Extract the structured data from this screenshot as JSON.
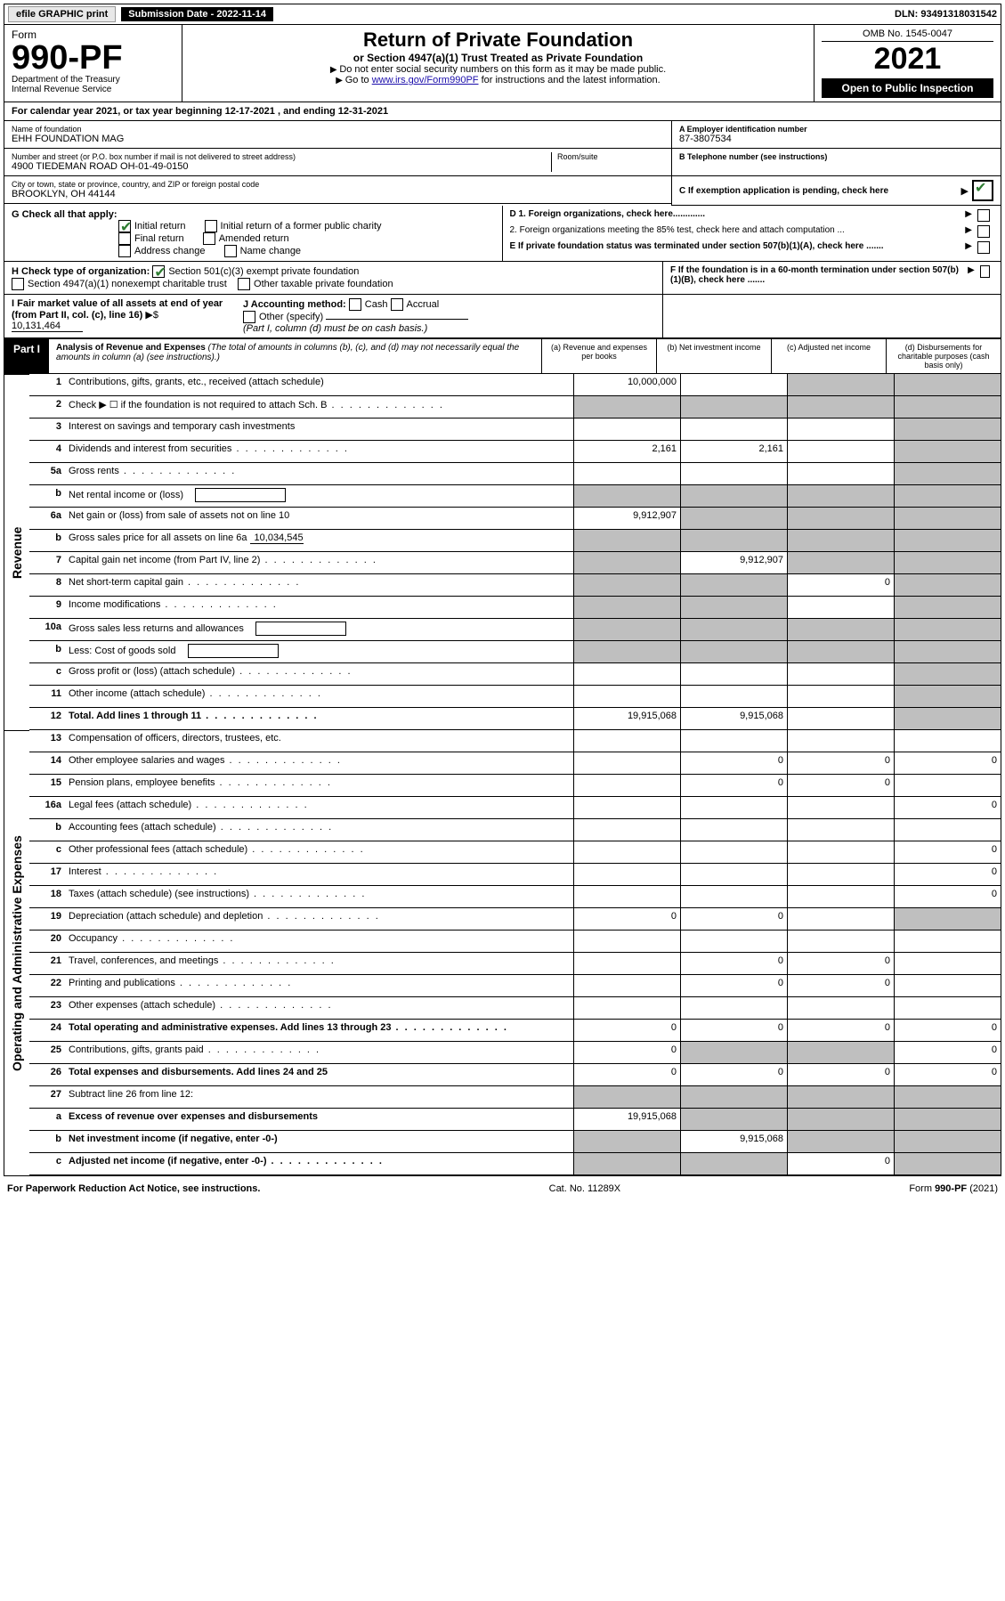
{
  "topbar": {
    "efile": "efile GRAPHIC print",
    "subdate_lbl": "Submission Date - 2022-11-14",
    "dln": "DLN: 93491318031542"
  },
  "header": {
    "form": "Form",
    "num": "990-PF",
    "dept": "Department of the Treasury",
    "irs": "Internal Revenue Service",
    "title": "Return of Private Foundation",
    "sub": "or Section 4947(a)(1) Trust Treated as Private Foundation",
    "instr1": "Do not enter social security numbers on this form as it may be made public.",
    "instr2_pre": "Go to ",
    "instr2_link": "www.irs.gov/Form990PF",
    "instr2_post": " for instructions and the latest information.",
    "omb": "OMB No. 1545-0047",
    "year": "2021",
    "inspect": "Open to Public Inspection"
  },
  "calyr": "For calendar year 2021, or tax year beginning 12-17-2021                             , and ending 12-31-2021",
  "id": {
    "name_lbl": "Name of foundation",
    "name": "EHH FOUNDATION MAG",
    "addr_lbl": "Number and street (or P.O. box number if mail is not delivered to street address)",
    "addr": "4900 TIEDEMAN ROAD OH-01-49-0150",
    "room_lbl": "Room/suite",
    "city_lbl": "City or town, state or province, country, and ZIP or foreign postal code",
    "city": "BROOKLYN, OH  44144",
    "a_lbl": "A Employer identification number",
    "a": "87-3807534",
    "b_lbl": "B Telephone number (see instructions)",
    "b": "",
    "c_lbl": "C If exemption application is pending, check here"
  },
  "g": {
    "lbl": "G Check all that apply:",
    "opts": [
      "Initial return",
      "Initial return of a former public charity",
      "Final return",
      "Amended return",
      "Address change",
      "Name change"
    ],
    "checked": [
      true,
      false,
      false,
      false,
      false,
      false
    ]
  },
  "d": {
    "d1": "D 1. Foreign organizations, check here.............",
    "d2": "2. Foreign organizations meeting the 85% test, check here and attach computation ...",
    "e": "E  If private foundation status was terminated under section 507(b)(1)(A), check here .......",
    "f": "F  If the foundation is in a 60-month termination under section 507(b)(1)(B), check here ......."
  },
  "h": {
    "lbl": "H Check type of organization:",
    "o1": "Section 501(c)(3) exempt private foundation",
    "o2": "Section 4947(a)(1) nonexempt charitable trust",
    "o3": "Other taxable private foundation"
  },
  "i": {
    "lbl": "I Fair market value of all assets at end of year (from Part II, col. (c), line 16)",
    "val": "10,131,464"
  },
  "j": {
    "lbl": "J Accounting method:",
    "cash": "Cash",
    "accrual": "Accrual",
    "other": "Other (specify)",
    "note": "(Part I, column (d) must be on cash basis.)"
  },
  "part1": {
    "lbl": "Part I",
    "title": "Analysis of Revenue and Expenses",
    "note": "(The total of amounts in columns (b), (c), and (d) may not necessarily equal the amounts in column (a) (see instructions).)",
    "cols": {
      "a": "(a)   Revenue and expenses per books",
      "b": "(b)   Net investment income",
      "c": "(c)  Adjusted net income",
      "d": "(d)  Disbursements for charitable purposes (cash basis only)"
    }
  },
  "sides": {
    "rev": "Revenue",
    "exp": "Operating and Administrative Expenses"
  },
  "rows": [
    {
      "n": "1",
      "d": "Contributions, gifts, grants, etc., received (attach schedule)",
      "a": "10,000,000",
      "bg": false,
      "cg": true,
      "dg": true
    },
    {
      "n": "2",
      "d": "Check ▶ ☐ if the foundation is not required to attach Sch. B",
      "a": "",
      "ag": true,
      "bg": true,
      "cg": true,
      "dg": true,
      "dots": true
    },
    {
      "n": "3",
      "d": "Interest on savings and temporary cash investments",
      "a": "",
      "dg": true
    },
    {
      "n": "4",
      "d": "Dividends and interest from securities",
      "a": "2,161",
      "b": "2,161",
      "dg": true,
      "dots": true
    },
    {
      "n": "5a",
      "d": "Gross rents",
      "a": "",
      "dg": true,
      "dots": true
    },
    {
      "n": "b",
      "d": "Net rental income or (loss)",
      "a": "",
      "ag": true,
      "bg": true,
      "cg": true,
      "dg": true,
      "box": true
    },
    {
      "n": "6a",
      "d": "Net gain or (loss) from sale of assets not on line 10",
      "a": "9,912,907",
      "bg": true,
      "cg": true,
      "dg": true
    },
    {
      "n": "b",
      "d": "Gross sales price for all assets on line 6a",
      "a": "",
      "ag": true,
      "bg": true,
      "cg": true,
      "dg": true,
      "fill": "10,034,545"
    },
    {
      "n": "7",
      "d": "Capital gain net income (from Part IV, line 2)",
      "a": "",
      "ag": true,
      "b": "9,912,907",
      "cg": true,
      "dg": true,
      "dots": true
    },
    {
      "n": "8",
      "d": "Net short-term capital gain",
      "a": "",
      "ag": true,
      "bg": true,
      "c": "0",
      "dg": true,
      "dots": true
    },
    {
      "n": "9",
      "d": "Income modifications",
      "a": "",
      "ag": true,
      "bg": true,
      "dg": true,
      "dots": true
    },
    {
      "n": "10a",
      "d": "Gross sales less returns and allowances",
      "a": "",
      "ag": true,
      "bg": true,
      "cg": true,
      "dg": true,
      "box": true
    },
    {
      "n": "b",
      "d": "Less: Cost of goods sold",
      "a": "",
      "ag": true,
      "bg": true,
      "cg": true,
      "dg": true,
      "box": true,
      "dots": true
    },
    {
      "n": "c",
      "d": "Gross profit or (loss) (attach schedule)",
      "a": "",
      "dg": true,
      "dots": true
    },
    {
      "n": "11",
      "d": "Other income (attach schedule)",
      "a": "",
      "dg": true,
      "dots": true
    },
    {
      "n": "12",
      "d": "Total. Add lines 1 through 11",
      "a": "19,915,068",
      "b": "9,915,068",
      "dg": true,
      "dots": true,
      "bold": true
    }
  ],
  "exp_rows": [
    {
      "n": "13",
      "d": "Compensation of officers, directors, trustees, etc."
    },
    {
      "n": "14",
      "d": "Other employee salaries and wages",
      "b": "0",
      "c": "0",
      "dv": "0",
      "dots": true
    },
    {
      "n": "15",
      "d": "Pension plans, employee benefits",
      "b": "0",
      "c": "0",
      "dots": true
    },
    {
      "n": "16a",
      "d": "Legal fees (attach schedule)",
      "dv": "0",
      "dots": true
    },
    {
      "n": "b",
      "d": "Accounting fees (attach schedule)",
      "dots": true
    },
    {
      "n": "c",
      "d": "Other professional fees (attach schedule)",
      "dv": "0",
      "dots": true
    },
    {
      "n": "17",
      "d": "Interest",
      "dv": "0",
      "dots": true
    },
    {
      "n": "18",
      "d": "Taxes (attach schedule) (see instructions)",
      "dv": "0",
      "dots": true
    },
    {
      "n": "19",
      "d": "Depreciation (attach schedule) and depletion",
      "a": "0",
      "b": "0",
      "dg": true,
      "dots": true
    },
    {
      "n": "20",
      "d": "Occupancy",
      "dots": true
    },
    {
      "n": "21",
      "d": "Travel, conferences, and meetings",
      "b": "0",
      "c": "0",
      "dots": true
    },
    {
      "n": "22",
      "d": "Printing and publications",
      "b": "0",
      "c": "0",
      "dots": true
    },
    {
      "n": "23",
      "d": "Other expenses (attach schedule)",
      "dots": true
    },
    {
      "n": "24",
      "d": "Total operating and administrative expenses. Add lines 13 through 23",
      "a": "0",
      "b": "0",
      "c": "0",
      "dv": "0",
      "dots": true,
      "bold": true
    },
    {
      "n": "25",
      "d": "Contributions, gifts, grants paid",
      "a": "0",
      "bg": true,
      "cg": true,
      "dv": "0",
      "dots": true
    },
    {
      "n": "26",
      "d": "Total expenses and disbursements. Add lines 24 and 25",
      "a": "0",
      "b": "0",
      "c": "0",
      "dv": "0",
      "bold": true
    },
    {
      "n": "27",
      "d": "Subtract line 26 from line 12:",
      "ag": true,
      "bg": true,
      "cg": true,
      "dg": true
    },
    {
      "n": "a",
      "d": "Excess of revenue over expenses and disbursements",
      "a": "19,915,068",
      "bg": true,
      "cg": true,
      "dg": true,
      "bold": true
    },
    {
      "n": "b",
      "d": "Net investment income (if negative, enter -0-)",
      "ag": true,
      "b": "9,915,068",
      "cg": true,
      "dg": true,
      "bold": true
    },
    {
      "n": "c",
      "d": "Adjusted net income (if negative, enter -0-)",
      "ag": true,
      "bg": true,
      "c": "0",
      "dg": true,
      "bold": true,
      "dots": true
    }
  ],
  "footer": {
    "l": "For Paperwork Reduction Act Notice, see instructions.",
    "m": "Cat. No. 11289X",
    "r": "Form 990-PF (2021)"
  },
  "colors": {
    "grey": "#bfbfbf",
    "black": "#000000",
    "green_check": "#2e7d32",
    "link": "#1a0dab"
  }
}
